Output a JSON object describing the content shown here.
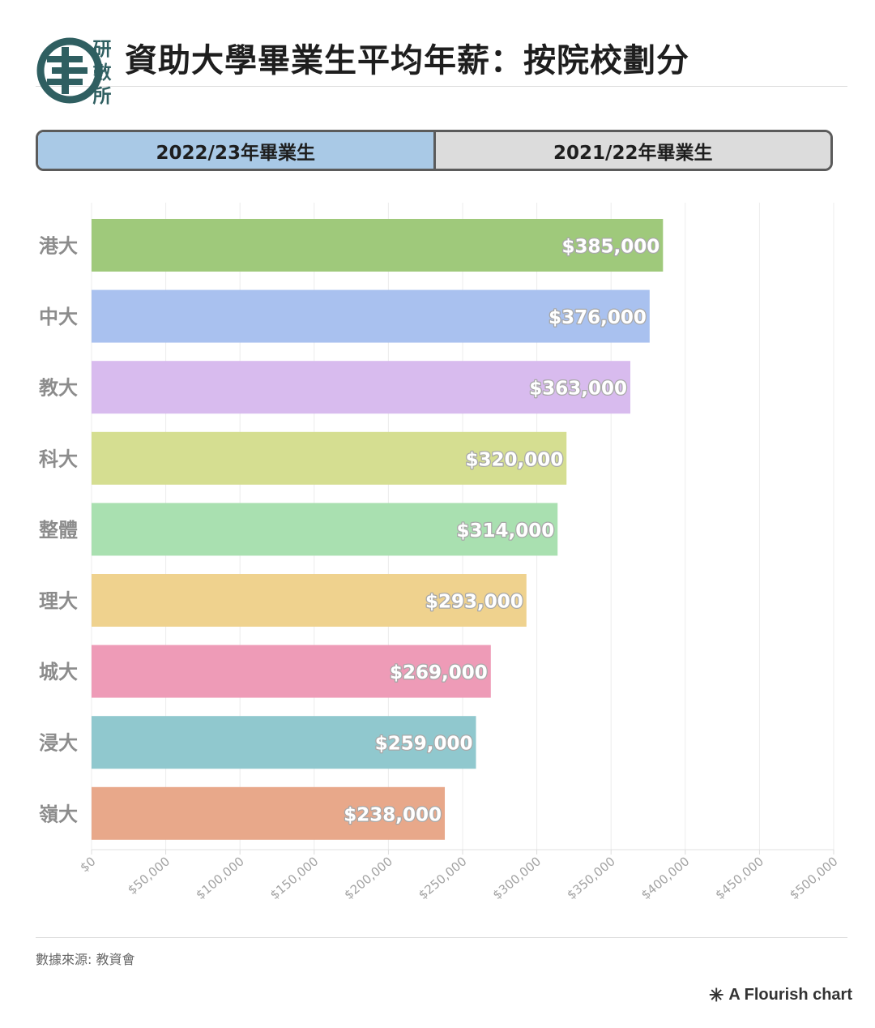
{
  "header": {
    "logo_text": [
      "研",
      "數",
      "所"
    ],
    "title": "資助大學畢業生平均年薪：按院校劃分"
  },
  "tabs": [
    {
      "label": "2022/23年畢業生",
      "active": true
    },
    {
      "label": "2021/22年畢業生",
      "active": false
    }
  ],
  "chart_data": {
    "type": "bar",
    "orientation": "horizontal",
    "categories": [
      "港大",
      "中大",
      "教大",
      "科大",
      "整體",
      "理大",
      "城大",
      "浸大",
      "嶺大"
    ],
    "values": [
      385000,
      376000,
      363000,
      320000,
      314000,
      293000,
      269000,
      259000,
      238000
    ],
    "value_labels": [
      "$385,000",
      "$376,000",
      "$363,000",
      "$320,000",
      "$314,000",
      "$293,000",
      "$269,000",
      "$259,000",
      "$238,000"
    ],
    "colors": [
      "#9fc97b",
      "#a9c1ef",
      "#d8bbee",
      "#d5de91",
      "#a9e0b0",
      "#efd28e",
      "#ee9bb7",
      "#90c8ce",
      "#e8a88a"
    ],
    "xlim": [
      0,
      500000
    ],
    "x_ticks": [
      0,
      50000,
      100000,
      150000,
      200000,
      250000,
      300000,
      350000,
      400000,
      450000,
      500000
    ],
    "x_tick_labels": [
      "$0",
      "$50,000",
      "$100,000",
      "$150,000",
      "$200,000",
      "$250,000",
      "$300,000",
      "$350,000",
      "$400,000",
      "$450,000",
      "$500,000"
    ],
    "grid": true
  },
  "footer": {
    "source": "數據來源: 教資會",
    "credit": "A Flourish chart",
    "credit_icon": "asterisk-icon"
  }
}
